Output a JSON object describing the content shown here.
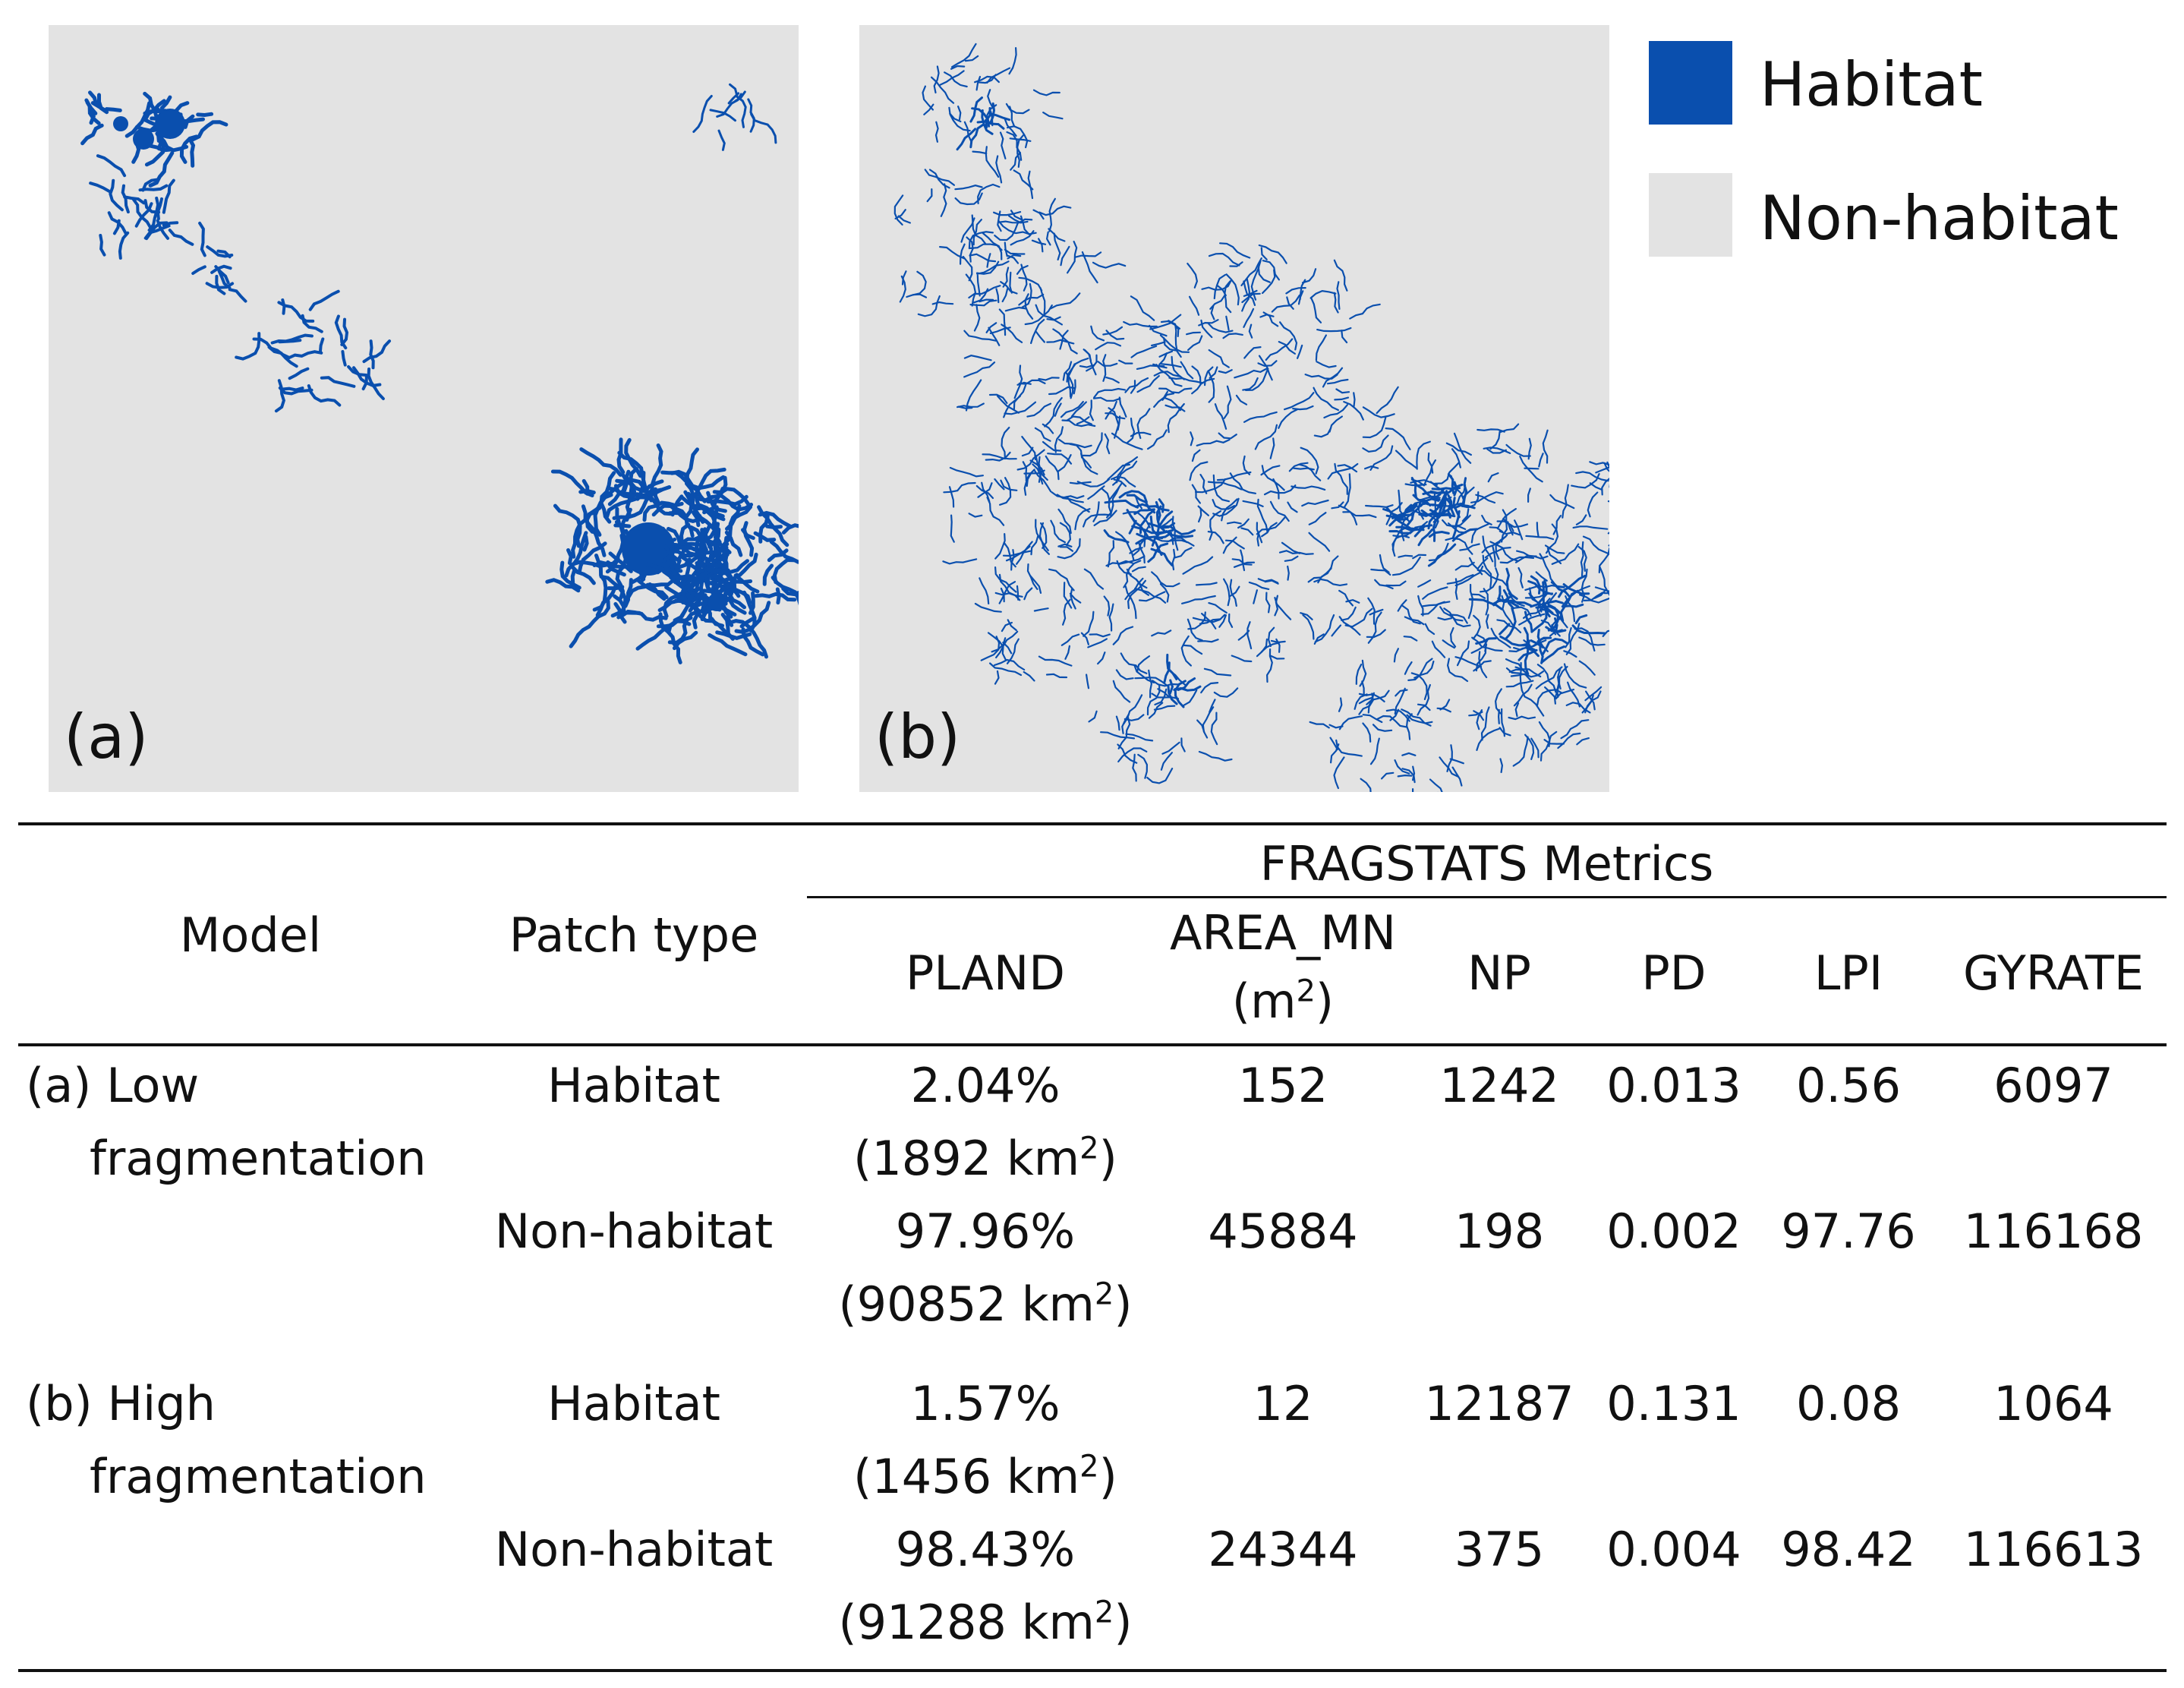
{
  "panels": [
    {
      "label": "(a)"
    },
    {
      "label": "(b)"
    }
  ],
  "legend": {
    "habitat": {
      "label": "Habitat",
      "color": "#0a4fae"
    },
    "non_habitat": {
      "label": "Non-habitat",
      "color": "#e3e3e3"
    }
  },
  "table": {
    "metrics_group_header": "FRAGSTATS Metrics",
    "col_model": "Model",
    "col_patch_type": "Patch type",
    "col_pland": "PLAND",
    "col_area_mn": "AREA_MN",
    "col_area_mn_unit_open": "(m",
    "col_area_mn_unit_sup": "2",
    "col_area_mn_unit_close": ")",
    "col_np": "NP",
    "col_pd": "PD",
    "col_lpi": "LPI",
    "col_gyrate": "GYRATE",
    "unit_km_suffix": " km",
    "unit_sup": "2",
    "groups": [
      {
        "model_line1": "(a) Low",
        "model_line2": "fragmentation",
        "rows": [
          {
            "patch": "Habitat",
            "pland": "2.04%",
            "pland_area": "(1892",
            "area_mn": "152",
            "np": "1242",
            "pd": "0.013",
            "lpi": "0.56",
            "gyrate": "6097"
          },
          {
            "patch": "Non-habitat",
            "pland": "97.96%",
            "pland_area": "(90852",
            "area_mn": "45884",
            "np": "198",
            "pd": "0.002",
            "lpi": "97.76",
            "gyrate": "116168"
          }
        ]
      },
      {
        "model_line1": "(b) High",
        "model_line2": "fragmentation",
        "rows": [
          {
            "patch": "Habitat",
            "pland": "1.57%",
            "pland_area": "(1456",
            "area_mn": "12",
            "np": "12187",
            "pd": "0.131",
            "lpi": "0.08",
            "gyrate": "1064"
          },
          {
            "patch": "Non-habitat",
            "pland": "98.43%",
            "pland_area": "(91288",
            "area_mn": "24344",
            "np": "375",
            "pd": "0.004",
            "lpi": "98.42",
            "gyrate": "116613"
          }
        ]
      }
    ]
  }
}
